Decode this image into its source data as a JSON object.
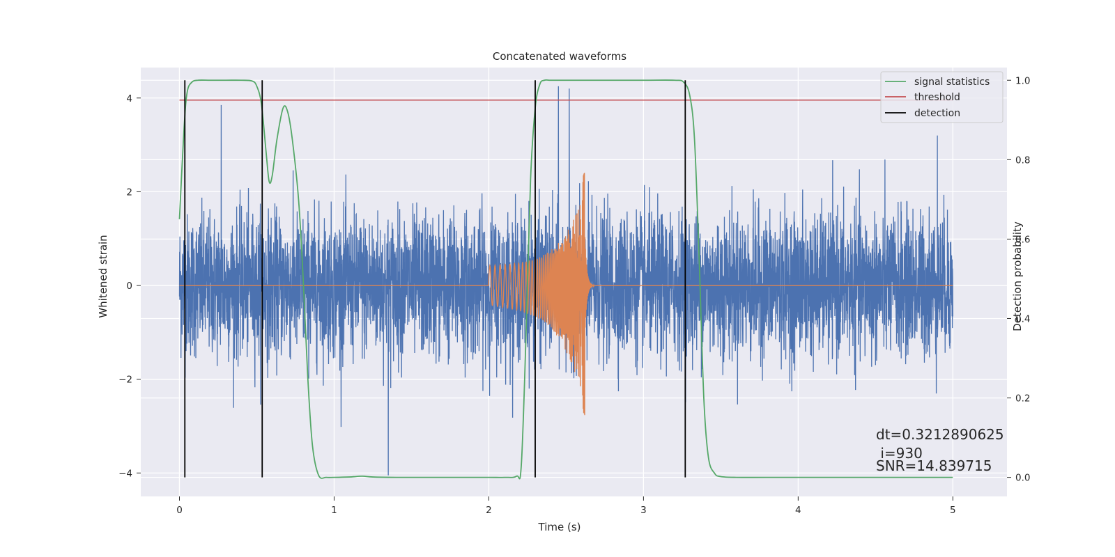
{
  "chart_data": {
    "type": "line",
    "title": "Concatenated waveforms",
    "xlabel": "Time (s)",
    "ylabel": "Whitened strain",
    "ylabel_right": "Detection probability",
    "xlim": [
      -0.25,
      5.35
    ],
    "ylim_left": [
      -4.5,
      4.65
    ],
    "ylim_right": [
      -0.048,
      1.032
    ],
    "x_ticks": [
      0,
      1,
      2,
      3,
      4,
      5
    ],
    "y_ticks_left": [
      -4,
      -2,
      0,
      2,
      4
    ],
    "y_ticks_right": [
      0.0,
      0.2,
      0.4,
      0.6,
      0.8,
      1.0
    ],
    "y_tick_labels_left": [
      "−4",
      "−2",
      "0",
      "2",
      "4"
    ],
    "y_tick_labels_right": [
      "0.0",
      "0.2",
      "0.4",
      "0.6",
      "0.8",
      "1.0"
    ],
    "grid": true,
    "legend_position": "upper-right",
    "colors": {
      "background": "#eaeaf2",
      "grid": "#ffffff",
      "strain": "#4c72b0",
      "template": "#dd8452",
      "signal_statistics": "#55a868",
      "threshold": "#c44e52",
      "detection": "#000000"
    },
    "series": [
      {
        "name": "signal statistics",
        "axis": "right",
        "x": [
          0.0,
          0.03,
          0.05,
          0.08,
          0.12,
          0.2,
          0.3,
          0.4,
          0.47,
          0.5,
          0.53,
          0.56,
          0.58,
          0.6,
          0.63,
          0.67,
          0.7,
          0.73,
          0.77,
          0.8,
          0.83,
          0.86,
          0.9,
          0.95,
          1.0,
          1.1,
          1.18,
          1.25,
          1.4,
          1.6,
          1.8,
          2.0,
          2.1,
          2.18,
          2.21,
          2.24,
          2.27,
          2.3,
          2.33,
          2.36,
          2.4,
          2.5,
          2.7,
          3.0,
          3.2,
          3.26,
          3.3,
          3.33,
          3.36,
          3.39,
          3.42,
          3.46,
          3.5,
          3.6,
          3.8,
          4.2,
          4.6,
          5.0
        ],
        "y": [
          0.65,
          0.88,
          0.97,
          0.995,
          1.0,
          1.0,
          1.0,
          1.0,
          0.998,
          0.985,
          0.94,
          0.82,
          0.745,
          0.76,
          0.85,
          0.93,
          0.92,
          0.85,
          0.7,
          0.5,
          0.25,
          0.08,
          0.005,
          0.0,
          0.0,
          0.001,
          0.003,
          0.001,
          0.0,
          0.0,
          0.0,
          0.0,
          0.0,
          0.003,
          0.03,
          0.35,
          0.75,
          0.93,
          0.99,
          1.0,
          1.0,
          1.0,
          1.0,
          1.0,
          1.0,
          0.995,
          0.96,
          0.85,
          0.55,
          0.2,
          0.05,
          0.01,
          0.002,
          0.0,
          0.0,
          0.0,
          0.0,
          0.0
        ]
      },
      {
        "name": "threshold",
        "axis": "right",
        "x": [
          0.0,
          5.0
        ],
        "y": [
          0.95,
          0.95
        ]
      },
      {
        "name": "detection",
        "axis": "right",
        "vertical_lines_x": [
          0.035,
          0.535,
          2.3,
          3.27
        ],
        "y_range": [
          0.0,
          1.0
        ]
      },
      {
        "name": "",
        "axis": "left",
        "description": "whitened strain noise",
        "x_range": [
          0.0,
          5.0
        ],
        "noise_sigma": 0.75,
        "spikes": [
          [
            0.27,
            3.85
          ],
          [
            1.35,
            -4.05
          ],
          [
            2.45,
            4.25
          ],
          [
            2.52,
            4.2
          ],
          [
            4.9,
            3.2
          ]
        ]
      },
      {
        "name": "",
        "axis": "left",
        "description": "injected chirp waveform",
        "chirp": {
          "start": 2.0,
          "merger": 2.62,
          "amp_start": 0.3,
          "amp_peak_pos": 2.45,
          "amp_peak_neg": -2.8,
          "freq_start": 30,
          "freq_end": 300
        }
      }
    ],
    "legend": [
      "signal statistics",
      "threshold",
      "detection"
    ],
    "annotations": {
      "dt": "dt=0.3212890625",
      "i": " i=930",
      "snr": "SNR=14.839715"
    }
  }
}
